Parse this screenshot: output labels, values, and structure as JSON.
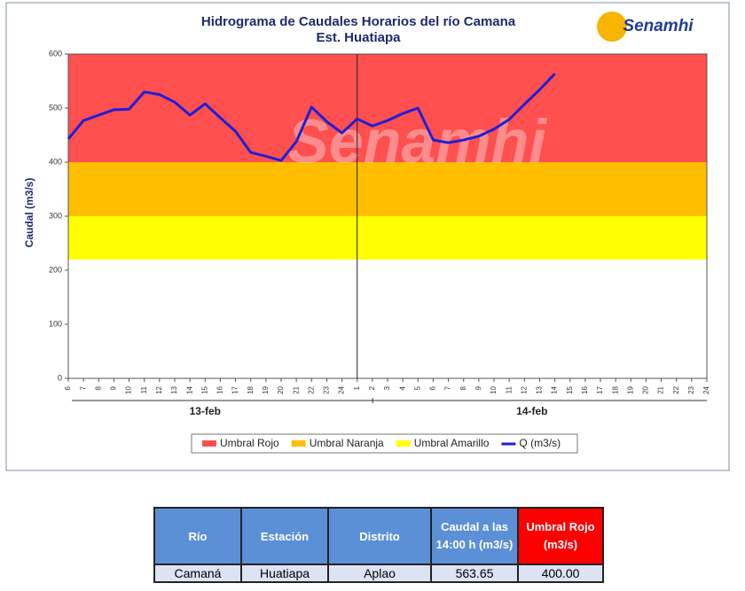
{
  "chart_data": {
    "type": "line",
    "title": "Hidrograma de Caudales Horarios del río Camana",
    "subtitle": "Est. Huatiapa",
    "logo": "Senamhi",
    "watermark": "Senamhi",
    "y_label": "Caudal  (m3/s)",
    "categories": [
      "6",
      "7",
      "8",
      "9",
      "10",
      "11",
      "12",
      "13",
      "14",
      "15",
      "16",
      "17",
      "18",
      "19",
      "20",
      "21",
      "22",
      "23",
      "24",
      "1",
      "2",
      "3",
      "4",
      "5",
      "6",
      "7",
      "8",
      "9",
      "10",
      "11",
      "12",
      "13",
      "14",
      "15",
      "16",
      "17",
      "18",
      "19",
      "20",
      "21",
      "22",
      "23",
      "24"
    ],
    "groups": [
      {
        "label": "13-feb",
        "span": 19
      },
      {
        "label": "14-feb",
        "span": 24
      }
    ],
    "ylim": [
      0,
      600
    ],
    "yticks": [
      0,
      100,
      200,
      300,
      400,
      500,
      600
    ],
    "bands": [
      {
        "name": "Umbral Rojo",
        "color": "#ff4f4f",
        "from": 400,
        "to": 600
      },
      {
        "name": "Umbral Naranja",
        "color": "#ffbf00",
        "from": 300,
        "to": 400
      },
      {
        "name": "Umbral Amarillo",
        "color": "#ffff00",
        "from": 220,
        "to": 300
      }
    ],
    "series": [
      {
        "name": "Q (m3/s)",
        "color": "#1f1fd6",
        "values": [
          443,
          477,
          487,
          497,
          498,
          530,
          525,
          511,
          487,
          508,
          482,
          457,
          418,
          411,
          403,
          438,
          502,
          475,
          454,
          480,
          467,
          477,
          490,
          500,
          441,
          436,
          441,
          448,
          461,
          479,
          507,
          534,
          563.65,
          null,
          null,
          null,
          null,
          null,
          null,
          null,
          null,
          null,
          null
        ]
      }
    ]
  },
  "table": {
    "headers": [
      "Río",
      "Estación",
      "Distrito",
      "Caudal a las 14:00 h (m3/s)",
      "Umbral Rojo (m3/s)"
    ],
    "rows": [
      [
        "Camaná",
        "Huatiapa",
        "Aplao",
        "563.65",
        "400.00"
      ]
    ]
  }
}
